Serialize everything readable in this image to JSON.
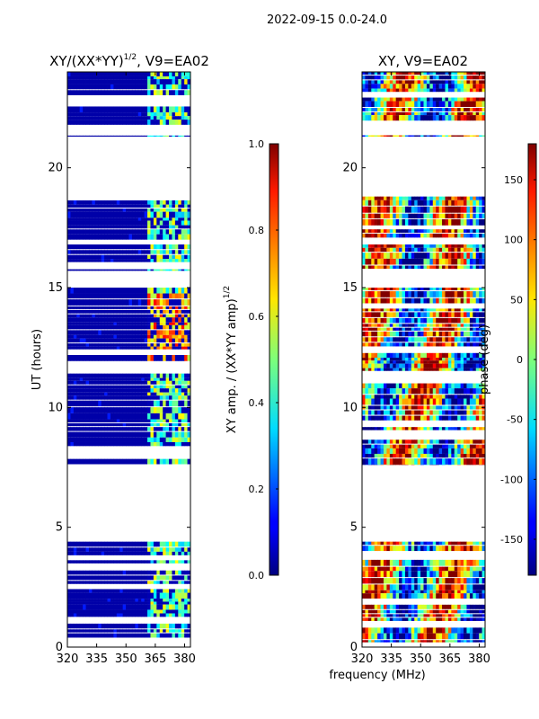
{
  "figure": {
    "suptitle": "2022-09-15 0.0-24.0",
    "xlabel": "frequency (MHz)"
  },
  "colors": {
    "jet_low": "#00007f",
    "jet_high": "#7f0000",
    "frame": "#000000"
  },
  "chart_data": [
    {
      "type": "heatmap",
      "title": "XY/(XX*YY)",
      "title_exponent": "1/2",
      "title_suffix": ", V9=EA02",
      "xlabel": "",
      "ylabel": "UT (hours)",
      "x_ticks": [
        320,
        335,
        350,
        365,
        380
      ],
      "y_ticks": [
        0,
        5,
        10,
        15,
        20
      ],
      "xlim": [
        320,
        383
      ],
      "ylim": [
        0,
        24
      ],
      "data_row_bands_hours": [
        [
          0.2,
          4.4
        ],
        [
          7.6,
          15.0
        ],
        [
          15.7,
          16.8
        ],
        [
          17.0,
          18.8
        ],
        [
          21.3,
          24.0
        ]
      ],
      "rfi_band_mhz": [
        361,
        383
      ],
      "value_range": [
        0,
        1
      ],
      "colorbar": {
        "label": "XY amp. / (XX*YY amp)",
        "label_exponent": "1/2",
        "ticks": [
          "0.0",
          "0.2",
          "0.4",
          "0.6",
          "0.8",
          "1.0"
        ],
        "range": [
          0,
          1
        ]
      }
    },
    {
      "type": "heatmap",
      "title": "XY, V9=EA02",
      "xlabel": "",
      "ylabel": "",
      "x_ticks": [
        320,
        335,
        350,
        365,
        380
      ],
      "y_ticks": [
        0,
        5,
        10,
        15,
        20
      ],
      "xlim": [
        320,
        383
      ],
      "ylim": [
        0,
        24
      ],
      "data_row_bands_hours": [
        [
          0.2,
          4.4
        ],
        [
          7.6,
          15.0
        ],
        [
          15.7,
          16.8
        ],
        [
          17.0,
          18.8
        ],
        [
          21.3,
          24.0
        ]
      ],
      "value_range": [
        -180,
        180
      ],
      "colorbar": {
        "label": "phase (deg)",
        "ticks": [
          "-150",
          "-100",
          "-50",
          "0",
          "50",
          "100",
          "150"
        ],
        "range": [
          -180,
          180
        ]
      }
    }
  ]
}
